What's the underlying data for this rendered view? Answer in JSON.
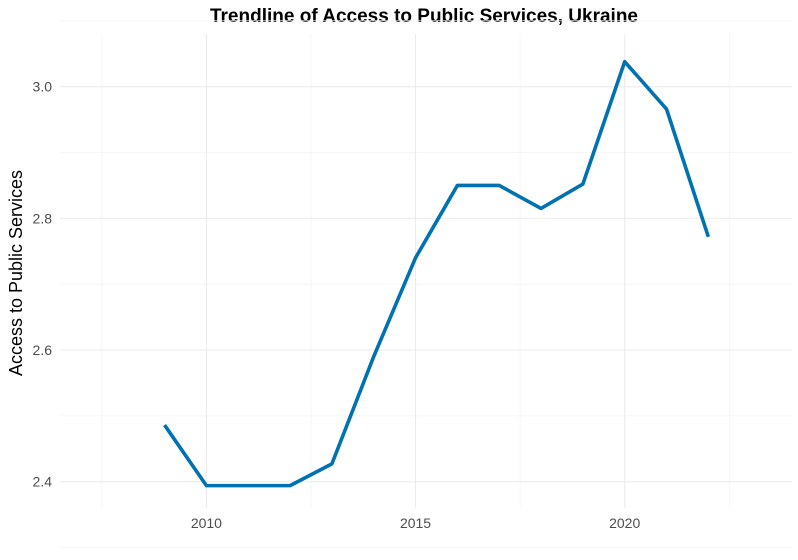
{
  "chart_data": {
    "type": "line",
    "title": "Trendline of Access to Public Services, Ukraine",
    "xlabel": "",
    "ylabel": "Access to Public Services",
    "x": [
      2009,
      2010,
      2011,
      2012,
      2013,
      2014,
      2015,
      2016,
      2017,
      2018,
      2019,
      2020,
      2021,
      2022
    ],
    "series": [
      {
        "values": [
          2.486,
          2.394,
          2.394,
          2.394,
          2.427,
          2.59,
          2.74,
          2.85,
          2.85,
          2.815,
          2.852,
          3.038,
          2.966,
          2.772
        ],
        "color": "#0072b2"
      }
    ],
    "xlim": [
      2006.5,
      2024
    ],
    "ylim": [
      2.36,
      3.08
    ],
    "x_ticks": [
      "2010",
      "2015",
      "2020"
    ],
    "y_ticks": [
      "2.4",
      "2.6",
      "2.8",
      "3.0"
    ],
    "grid": true,
    "legend": "none"
  }
}
